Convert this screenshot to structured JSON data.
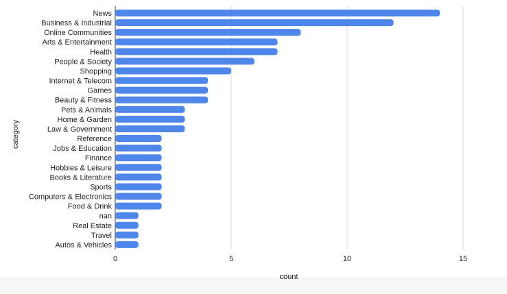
{
  "chart_data": {
    "type": "bar",
    "orientation": "horizontal",
    "title": "",
    "xlabel": "count",
    "ylabel": "category",
    "xlim": [
      0,
      15
    ],
    "x_ticks": [
      0,
      5,
      10,
      15
    ],
    "grid": true,
    "bar_color": "#4e86ea",
    "categories": [
      "News",
      "Business & Industrial",
      "Online Communities",
      "Arts & Entertainment",
      "Health",
      "People & Society",
      "Shopping",
      "Internet & Telecom",
      "Games",
      "Beauty & Fitness",
      "Pets & Animals",
      "Home & Garden",
      "Law & Government",
      "Reference",
      "Jobs & Education",
      "Finance",
      "Hobbies & Leisure",
      "Books & Literature",
      "Sports",
      "Computers & Electronics",
      "Food & Drink",
      "nan",
      "Real Estate",
      "Travel",
      "Autos & Vehicles"
    ],
    "values": [
      14,
      12,
      8,
      7,
      7,
      6,
      5,
      4,
      4,
      4,
      3,
      3,
      3,
      2,
      2,
      2,
      2,
      2,
      2,
      2,
      2,
      1,
      1,
      1,
      1
    ]
  }
}
